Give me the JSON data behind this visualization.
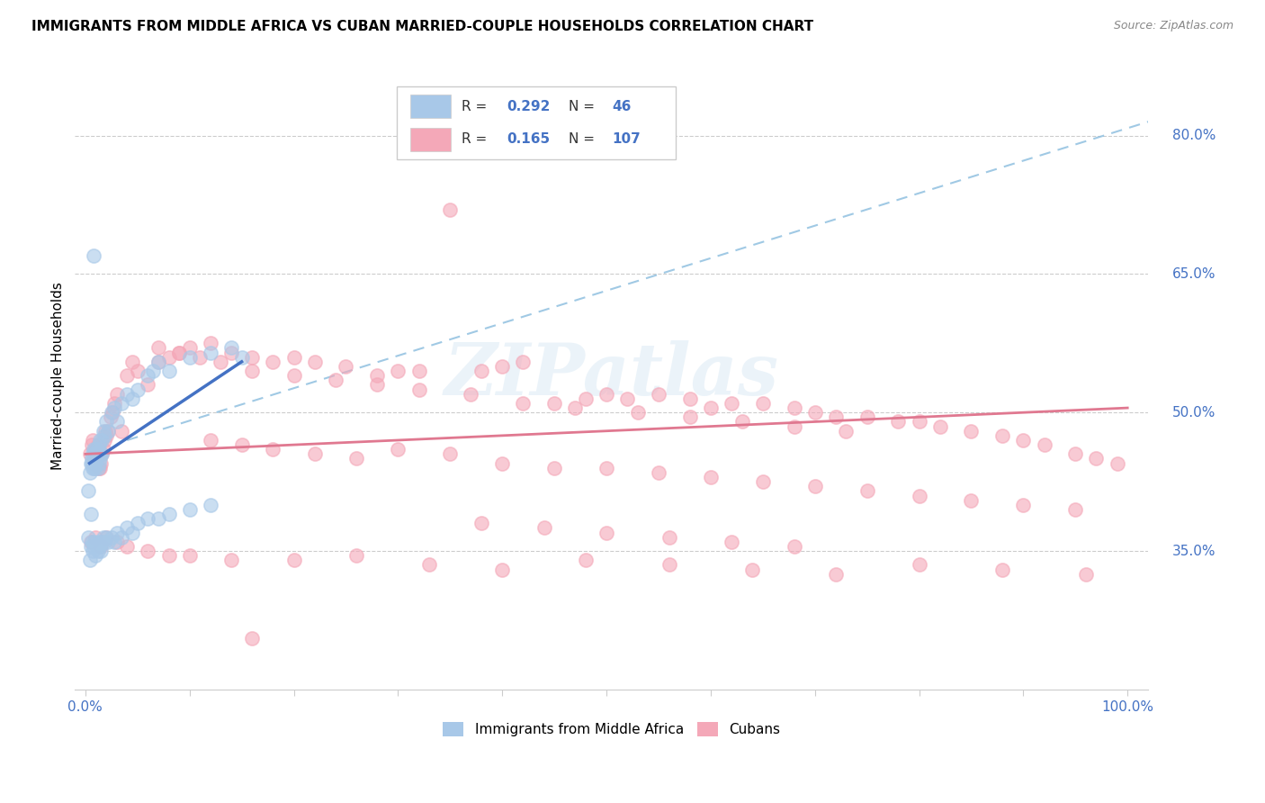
{
  "title": "IMMIGRANTS FROM MIDDLE AFRICA VS CUBAN MARRIED-COUPLE HOUSEHOLDS CORRELATION CHART",
  "source": "Source: ZipAtlas.com",
  "ylabel": "Married-couple Households",
  "y_ticks": [
    0.35,
    0.5,
    0.65,
    0.8
  ],
  "y_tick_labels": [
    "35.0%",
    "50.0%",
    "65.0%",
    "80.0%"
  ],
  "legend_R1": "0.292",
  "legend_N1": "46",
  "legend_R2": "0.165",
  "legend_N2": "107",
  "color_blue": "#a8c8e8",
  "color_pink": "#f4a8b8",
  "line_blue": "#4472c4",
  "line_pink": "#e07890",
  "line_dash": "#90c0e0",
  "label_color": "#4472c4",
  "watermark": "ZIPatlas",
  "blue_x": [
    0.003,
    0.004,
    0.005,
    0.005,
    0.006,
    0.006,
    0.007,
    0.007,
    0.008,
    0.008,
    0.009,
    0.009,
    0.01,
    0.01,
    0.01,
    0.011,
    0.011,
    0.012,
    0.012,
    0.013,
    0.013,
    0.014,
    0.014,
    0.015,
    0.016,
    0.016,
    0.017,
    0.018,
    0.02,
    0.022,
    0.025,
    0.028,
    0.03,
    0.035,
    0.04,
    0.045,
    0.05,
    0.06,
    0.065,
    0.07,
    0.08,
    0.1,
    0.12,
    0.14,
    0.15,
    0.008
  ],
  "blue_y": [
    0.415,
    0.435,
    0.39,
    0.445,
    0.445,
    0.45,
    0.44,
    0.455,
    0.44,
    0.46,
    0.445,
    0.455,
    0.44,
    0.45,
    0.46,
    0.45,
    0.46,
    0.44,
    0.455,
    0.445,
    0.465,
    0.45,
    0.47,
    0.455,
    0.455,
    0.47,
    0.48,
    0.475,
    0.49,
    0.48,
    0.5,
    0.505,
    0.49,
    0.51,
    0.52,
    0.515,
    0.525,
    0.54,
    0.545,
    0.555,
    0.545,
    0.56,
    0.565,
    0.57,
    0.56,
    0.67
  ],
  "blue_x_low": [
    0.003,
    0.004,
    0.005,
    0.006,
    0.007,
    0.008,
    0.009,
    0.01,
    0.011,
    0.012,
    0.013,
    0.014,
    0.015,
    0.016,
    0.017,
    0.018,
    0.02,
    0.022,
    0.025,
    0.028,
    0.03,
    0.035,
    0.04,
    0.045,
    0.05,
    0.06,
    0.07,
    0.08,
    0.1,
    0.12
  ],
  "blue_y_low": [
    0.365,
    0.34,
    0.355,
    0.36,
    0.35,
    0.355,
    0.36,
    0.345,
    0.355,
    0.35,
    0.36,
    0.355,
    0.35,
    0.36,
    0.365,
    0.36,
    0.365,
    0.36,
    0.365,
    0.36,
    0.37,
    0.365,
    0.375,
    0.37,
    0.38,
    0.385,
    0.385,
    0.39,
    0.395,
    0.4
  ],
  "pink_x": [
    0.004,
    0.006,
    0.007,
    0.008,
    0.009,
    0.01,
    0.011,
    0.012,
    0.013,
    0.014,
    0.015,
    0.016,
    0.017,
    0.018,
    0.019,
    0.02,
    0.022,
    0.024,
    0.026,
    0.028,
    0.03,
    0.035,
    0.04,
    0.045,
    0.05,
    0.06,
    0.07,
    0.08,
    0.09,
    0.1,
    0.12,
    0.14,
    0.16,
    0.18,
    0.2,
    0.22,
    0.25,
    0.28,
    0.3,
    0.32,
    0.35,
    0.38,
    0.4,
    0.42,
    0.45,
    0.48,
    0.5,
    0.52,
    0.55,
    0.58,
    0.6,
    0.62,
    0.65,
    0.68,
    0.7,
    0.72,
    0.75,
    0.78,
    0.8,
    0.82,
    0.85,
    0.88,
    0.9,
    0.92,
    0.95,
    0.97,
    0.99,
    0.12,
    0.15,
    0.18,
    0.22,
    0.26,
    0.3,
    0.35,
    0.4,
    0.45,
    0.5,
    0.55,
    0.6,
    0.65,
    0.7,
    0.75,
    0.8,
    0.85,
    0.9,
    0.95,
    0.07,
    0.09,
    0.11,
    0.13,
    0.16,
    0.2,
    0.24,
    0.28,
    0.32,
    0.37,
    0.42,
    0.47,
    0.53,
    0.58,
    0.63,
    0.68,
    0.73
  ],
  "pink_y": [
    0.455,
    0.465,
    0.47,
    0.445,
    0.45,
    0.46,
    0.455,
    0.465,
    0.44,
    0.44,
    0.445,
    0.455,
    0.46,
    0.47,
    0.48,
    0.475,
    0.48,
    0.495,
    0.5,
    0.51,
    0.52,
    0.48,
    0.54,
    0.555,
    0.545,
    0.53,
    0.555,
    0.56,
    0.565,
    0.57,
    0.575,
    0.565,
    0.56,
    0.555,
    0.56,
    0.555,
    0.55,
    0.54,
    0.545,
    0.545,
    0.72,
    0.545,
    0.55,
    0.555,
    0.51,
    0.515,
    0.52,
    0.515,
    0.52,
    0.515,
    0.505,
    0.51,
    0.51,
    0.505,
    0.5,
    0.495,
    0.495,
    0.49,
    0.49,
    0.485,
    0.48,
    0.475,
    0.47,
    0.465,
    0.455,
    0.45,
    0.445,
    0.47,
    0.465,
    0.46,
    0.455,
    0.45,
    0.46,
    0.455,
    0.445,
    0.44,
    0.44,
    0.435,
    0.43,
    0.425,
    0.42,
    0.415,
    0.41,
    0.405,
    0.4,
    0.395,
    0.57,
    0.565,
    0.56,
    0.555,
    0.545,
    0.54,
    0.535,
    0.53,
    0.525,
    0.52,
    0.51,
    0.505,
    0.5,
    0.495,
    0.49,
    0.485,
    0.48
  ],
  "pink_x_low": [
    0.005,
    0.01,
    0.015,
    0.02,
    0.03,
    0.04,
    0.06,
    0.08,
    0.1,
    0.14,
    0.2,
    0.26,
    0.33,
    0.4,
    0.48,
    0.56,
    0.64,
    0.72,
    0.8,
    0.88,
    0.96,
    0.38,
    0.44,
    0.5,
    0.56,
    0.62,
    0.68
  ],
  "pink_y_low": [
    0.36,
    0.365,
    0.355,
    0.365,
    0.36,
    0.355,
    0.35,
    0.345,
    0.345,
    0.34,
    0.34,
    0.345,
    0.335,
    0.33,
    0.34,
    0.335,
    0.33,
    0.325,
    0.335,
    0.33,
    0.325,
    0.38,
    0.375,
    0.37,
    0.365,
    0.36,
    0.355
  ],
  "pink_outlier_low_x": [
    0.16
  ],
  "pink_outlier_low_y": [
    0.255
  ]
}
